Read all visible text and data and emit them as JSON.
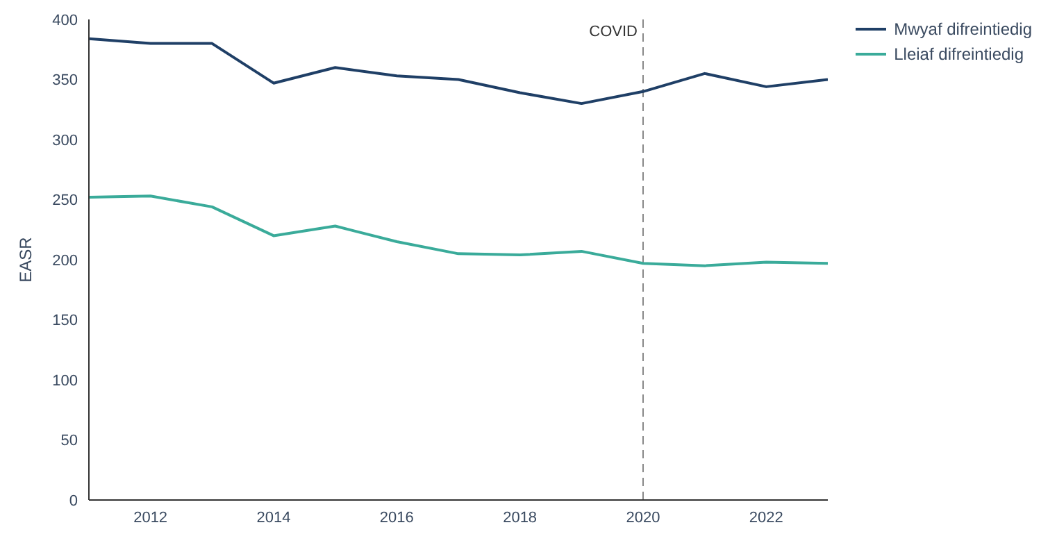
{
  "chart_data": {
    "type": "line",
    "ylabel": "EASR",
    "x": [
      2011,
      2012,
      2013,
      2014,
      2015,
      2016,
      2017,
      2018,
      2019,
      2020,
      2021,
      2022,
      2023
    ],
    "series": [
      {
        "name": "Mwyaf difreintiedig",
        "color": "#1f3f66",
        "values": [
          384,
          380,
          380,
          347,
          360,
          353,
          350,
          339,
          330,
          340,
          355,
          344,
          350
        ]
      },
      {
        "name": "Lleiaf difreintiedig",
        "color": "#3aab9a",
        "values": [
          252,
          253,
          244,
          220,
          228,
          215,
          205,
          204,
          207,
          197,
          195,
          198,
          197
        ]
      }
    ],
    "xlim": [
      2011,
      2023
    ],
    "xticks": [
      2012,
      2014,
      2016,
      2018,
      2020,
      2022
    ],
    "ylim": [
      0,
      400
    ],
    "yticks": [
      0,
      50,
      100,
      150,
      200,
      250,
      300,
      350,
      400
    ],
    "ref_lines": [
      {
        "axis": "x",
        "value": 2020,
        "label": "COVID",
        "color": "#888888",
        "line_style": "dashed"
      }
    ],
    "grid": false,
    "legend": "top right",
    "marker": "none",
    "line_style": "solid"
  }
}
